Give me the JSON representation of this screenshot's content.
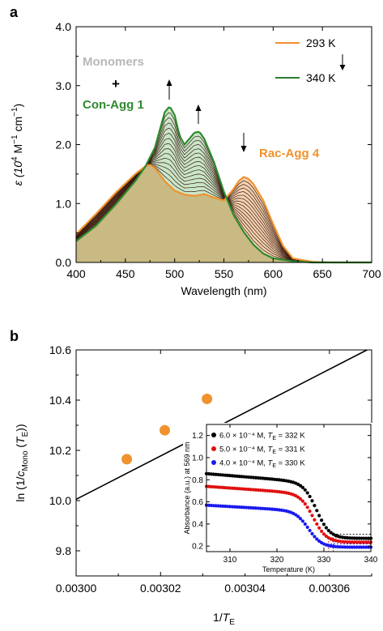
{
  "chart_data": [
    {
      "panel": "a",
      "type": "line",
      "xlabel": "Wavelength (nm)",
      "ylabel_pre": "ε (10",
      "ylabel_sup1": "4",
      "ylabel_mid": " M",
      "ylabel_sup2": "−1",
      "ylabel_mid2": " cm",
      "ylabel_sup3": "−1",
      "ylabel_post": ")",
      "xlim": [
        400,
        700
      ],
      "ylim": [
        0,
        4
      ],
      "xticks": [
        "400",
        "450",
        "500",
        "550",
        "600",
        "650",
        "700"
      ],
      "yticks": [
        "0.0",
        "1.0",
        "2.0",
        "3.0",
        "4.0"
      ],
      "legend": [
        {
          "name": "293 K",
          "color": "#f0922e"
        },
        {
          "name": "340 K",
          "color": "#2e7d32"
        }
      ],
      "annotations": {
        "monomers": "Monomers",
        "plus": "+",
        "con_agg": "Con-Agg 1",
        "rac_agg": "Rac-Agg 4"
      },
      "colors": {
        "rac": "#f0922e",
        "con": "#2e8b2e",
        "mono_text": "#b8b8b8",
        "intermediate": "#3a1a10",
        "fill_green": "#c9e6c9",
        "fill_orange": "#f4d2b0",
        "fill_base": "#c9b982"
      },
      "intermediate_count": 14,
      "series": [
        {
          "name": "293 K",
          "x": [
            400,
            420,
            440,
            460,
            470,
            475,
            480,
            490,
            500,
            510,
            520,
            530,
            540,
            550,
            560,
            565,
            570,
            575,
            580,
            590,
            600,
            610,
            620,
            640,
            660,
            680,
            700
          ],
          "y": [
            0.48,
            0.82,
            1.18,
            1.5,
            1.63,
            1.66,
            1.6,
            1.38,
            1.22,
            1.15,
            1.13,
            1.16,
            1.1,
            1.05,
            1.25,
            1.38,
            1.45,
            1.42,
            1.33,
            1.05,
            0.65,
            0.28,
            0.07,
            0.01,
            0.0,
            0.0,
            0.0
          ]
        },
        {
          "name": "340 K",
          "x": [
            400,
            420,
            440,
            460,
            470,
            480,
            485,
            490,
            495,
            500,
            505,
            510,
            515,
            520,
            525,
            530,
            540,
            550,
            560,
            570,
            580,
            590,
            600,
            620,
            640,
            700
          ],
          "y": [
            0.36,
            0.62,
            0.98,
            1.38,
            1.62,
            1.95,
            2.25,
            2.55,
            2.65,
            2.5,
            2.15,
            2.0,
            2.1,
            2.2,
            2.22,
            2.1,
            1.7,
            1.2,
            0.8,
            0.52,
            0.3,
            0.15,
            0.07,
            0.02,
            0.0,
            0.0
          ]
        }
      ]
    },
    {
      "panel": "b",
      "type": "scatter",
      "xlabel_pre": "1/",
      "xlabel_sym": "T",
      "xlabel_sub": "E",
      "ylabel_pre": "ln (1/",
      "ylabel_sym": "c",
      "ylabel_sub": "Mono",
      "ylabel_mid": " (",
      "ylabel_sym2": "T",
      "ylabel_sub2": "E",
      "ylabel_post": "))",
      "xlim": [
        0.003,
        0.00307
      ],
      "ylim": [
        9.7,
        10.6
      ],
      "xticks": [
        "0.00300",
        "0.00302",
        "0.00304",
        "0.00306"
      ],
      "yticks": [
        "9.8",
        "10.0",
        "10.2",
        "10.4",
        "10.6"
      ],
      "points": {
        "x": [
          0.003012,
          0.003021,
          0.003031
        ],
        "y": [
          10.165,
          10.28,
          10.405
        ],
        "color": "#f0922e"
      },
      "fit_line": {
        "x": [
          0.003,
          0.0030689
        ],
        "y": [
          10.005,
          10.6
        ]
      },
      "inset": {
        "type": "scatter",
        "xlabel": "Temperature (K)",
        "ylabel": "Absorbance (a.u.) at 569 nm",
        "xlim": [
          305,
          340
        ],
        "ylim": [
          0.15,
          1.3
        ],
        "xticks": [
          "310",
          "320",
          "330",
          "340"
        ],
        "yticks": [
          "0.2",
          "0.4",
          "0.6",
          "0.8",
          "1.0",
          "1.2"
        ],
        "series": [
          {
            "name": "6.0 × 10⁻⁴ M, ",
            "t_sym": "T",
            "t_sub": "E",
            "t_val": " = 332 K",
            "color": "#000000",
            "plateau": 0.855,
            "low": 0.27,
            "slope": -0.0035,
            "te": 332,
            "mid": 328.5,
            "w": 1.4
          },
          {
            "name": "5.0 × 10⁻⁴ M, ",
            "t_sym": "T",
            "t_sub": "E",
            "t_val": " = 331 K",
            "color": "#e01010",
            "plateau": 0.74,
            "low": 0.235,
            "slope": -0.003,
            "te": 331,
            "mid": 327.8,
            "w": 1.4
          },
          {
            "name": "4.0 × 10⁻⁴ M, ",
            "t_sym": "T",
            "t_sub": "E",
            "t_val": " = 330 K",
            "color": "#1a1aee",
            "plateau": 0.57,
            "low": 0.19,
            "slope": -0.0025,
            "te": 330,
            "mid": 326.8,
            "w": 1.4
          }
        ]
      }
    }
  ]
}
